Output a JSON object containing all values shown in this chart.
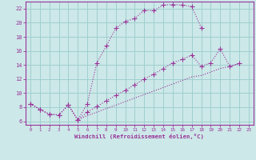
{
  "xlabel": "Windchill (Refroidissement éolien,°C)",
  "bg_color": "#cce8e8",
  "line_color": "#993399",
  "grid_color": "#99cccc",
  "xlim": [
    -0.5,
    23.5
  ],
  "ylim": [
    5.5,
    23.0
  ],
  "xticks": [
    0,
    1,
    2,
    3,
    4,
    5,
    6,
    7,
    8,
    9,
    10,
    11,
    12,
    13,
    14,
    15,
    16,
    17,
    18,
    19,
    20,
    21,
    22,
    23
  ],
  "yticks": [
    6,
    8,
    10,
    12,
    14,
    16,
    18,
    20,
    22
  ],
  "curve1_x": [
    0,
    1,
    2,
    3,
    4,
    5,
    6,
    7,
    8,
    9,
    10,
    11,
    12,
    13,
    14,
    15,
    16,
    17,
    18
  ],
  "curve1_y": [
    8.5,
    7.7,
    7.0,
    6.9,
    8.3,
    6.2,
    8.5,
    14.3,
    16.7,
    19.2,
    20.2,
    20.6,
    21.8,
    21.7,
    22.5,
    22.6,
    22.5,
    22.3,
    19.3
  ],
  "curve2_x": [
    0,
    1,
    2,
    3,
    4,
    5,
    6,
    7,
    8,
    9,
    10,
    11,
    12,
    13,
    14,
    15,
    16,
    17,
    18,
    19,
    20,
    21,
    22
  ],
  "curve2_y": [
    8.5,
    7.7,
    7.0,
    6.9,
    8.3,
    6.2,
    7.3,
    8.1,
    8.9,
    9.7,
    10.4,
    11.2,
    12.0,
    12.7,
    13.5,
    14.3,
    14.8,
    15.4,
    13.8,
    14.3,
    16.3,
    13.8,
    14.2
  ],
  "curve3_x": [
    0,
    1,
    2,
    3,
    4,
    5,
    6,
    7,
    8,
    9,
    10,
    11,
    12,
    13,
    14,
    15,
    16,
    17,
    18,
    19,
    20,
    21,
    22
  ],
  "curve3_y": [
    8.5,
    7.7,
    7.0,
    6.9,
    8.3,
    6.2,
    6.8,
    7.3,
    7.8,
    8.3,
    8.8,
    9.3,
    9.8,
    10.3,
    10.8,
    11.3,
    11.8,
    12.3,
    12.5,
    13.0,
    13.5,
    13.8,
    14.2
  ]
}
